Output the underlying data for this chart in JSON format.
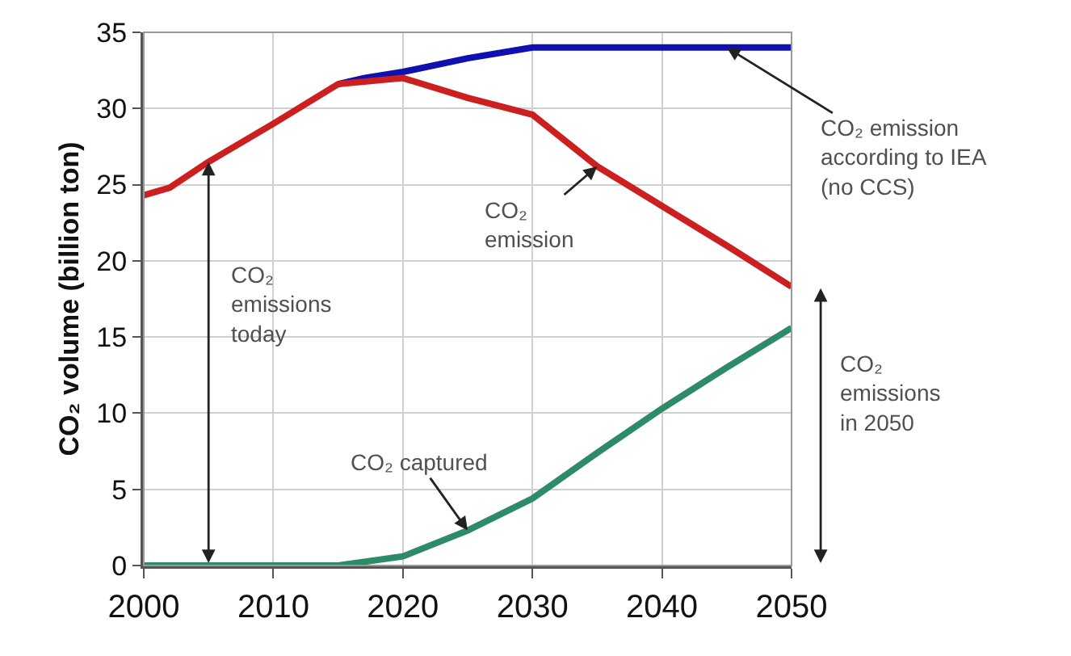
{
  "chart_data": {
    "type": "line",
    "ylabel": "CO₂ volume (billion ton)",
    "xlim": [
      2000,
      2050
    ],
    "xticks": [
      2000,
      2010,
      2020,
      2030,
      2040,
      2050
    ],
    "ylim": [
      0,
      35
    ],
    "yticks": [
      0,
      5,
      10,
      15,
      20,
      25,
      30,
      35
    ],
    "grid": true,
    "marker": "none",
    "line_style": "solid",
    "series": [
      {
        "color": "#1010b0",
        "x": [
          2015,
          2017,
          2020,
          2025,
          2030,
          2050
        ],
        "values": [
          31.6,
          32,
          32.4,
          33.3,
          34,
          34
        ]
      },
      {
        "color": "#cc1f1f",
        "x": [
          2000,
          2002,
          2005,
          2010,
          2015,
          2020,
          2025,
          2030,
          2035,
          2040,
          2045,
          2050
        ],
        "values": [
          24.3,
          24.8,
          26.5,
          29,
          31.6,
          32,
          30.7,
          29.6,
          26.2,
          23.6,
          21,
          18.3
        ]
      },
      {
        "color": "#2e8b68",
        "x": [
          2000,
          2015,
          2020,
          2025,
          2030,
          2035,
          2040,
          2045,
          2050
        ],
        "values": [
          0,
          0,
          0.6,
          2.3,
          4.4,
          7.4,
          10.3,
          13,
          15.6
        ]
      }
    ],
    "annotations": [
      {
        "text": "CO₂ emission\naccording to IEA\n(no CCS)",
        "x": 2045,
        "y": 34
      },
      {
        "text": "CO₂\nemission",
        "x": 2035,
        "y": 26.2
      },
      {
        "text": "CO₂ captured",
        "x": 2025,
        "y": 2.3
      },
      "CO₂\nemissions\ntoday",
      "CO₂\nemissions\nin 2050"
    ]
  }
}
